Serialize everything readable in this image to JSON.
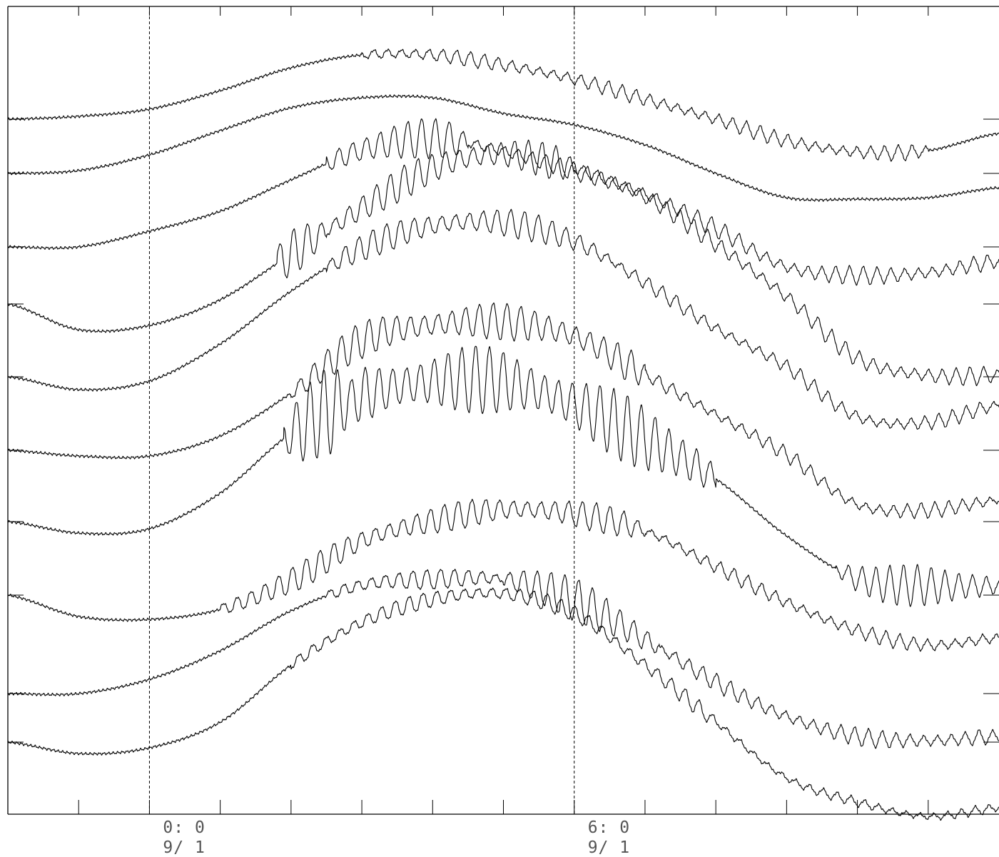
{
  "chart_data": {
    "type": "line",
    "title": "",
    "xlabel": "",
    "ylabel": "",
    "x_unit": "hours",
    "xlim": [
      -2.0,
      12.0
    ],
    "x_minor_tick_step_hours": 1,
    "grid": false,
    "x_tick_labels": [
      {
        "x": 0,
        "time": "0: 0",
        "date": "9/ 1"
      },
      {
        "x": 6,
        "time": "6: 0",
        "date": "9/ 1"
      }
    ],
    "reference_lines_x": [
      0,
      6
    ],
    "legend": "none",
    "colors": {
      "trace": "#000000",
      "axes": "#000000",
      "label": "#555555"
    },
    "series_note_values": "traces are offset and normalised; y units are not printed",
    "series": [
      {
        "values": [
          {
            "x": -2.0,
            "y": 0.0
          },
          {
            "x": -1.0,
            "y": 0.02
          },
          {
            "x": 0.0,
            "y": 0.07
          },
          {
            "x": 1.0,
            "y": 0.2
          },
          {
            "x": 2.0,
            "y": 0.36
          },
          {
            "x": 3.0,
            "y": 0.45
          },
          {
            "x": 4.0,
            "y": 0.45
          },
          {
            "x": 5.0,
            "y": 0.38
          },
          {
            "x": 6.0,
            "y": 0.28
          },
          {
            "x": 7.0,
            "y": 0.14
          },
          {
            "x": 8.0,
            "y": 0.0
          },
          {
            "x": 9.0,
            "y": -0.15
          },
          {
            "x": 10.0,
            "y": -0.23
          },
          {
            "x": 11.0,
            "y": -0.22
          },
          {
            "x": 12.0,
            "y": -0.1
          }
        ],
        "ripple": [
          {
            "x0": 3.0,
            "x1": 11.0,
            "amp": 0.05
          }
        ]
      },
      {
        "values": [
          {
            "x": -2.0,
            "y": 0.0
          },
          {
            "x": -1.0,
            "y": 0.02
          },
          {
            "x": 0.0,
            "y": 0.13
          },
          {
            "x": 1.0,
            "y": 0.3
          },
          {
            "x": 2.0,
            "y": 0.46
          },
          {
            "x": 3.0,
            "y": 0.53
          },
          {
            "x": 4.0,
            "y": 0.53
          },
          {
            "x": 5.0,
            "y": 0.42
          },
          {
            "x": 6.0,
            "y": 0.34
          },
          {
            "x": 7.0,
            "y": 0.2
          },
          {
            "x": 8.0,
            "y": 0.0
          },
          {
            "x": 9.0,
            "y": -0.17
          },
          {
            "x": 10.0,
            "y": -0.18
          },
          {
            "x": 11.0,
            "y": -0.17
          },
          {
            "x": 12.0,
            "y": -0.1
          }
        ],
        "ripple": []
      },
      {
        "values": [
          {
            "x": -2.0,
            "y": 0.0
          },
          {
            "x": -1.0,
            "y": 0.0
          },
          {
            "x": 0.0,
            "y": 0.11
          },
          {
            "x": 1.0,
            "y": 0.25
          },
          {
            "x": 2.0,
            "y": 0.47
          },
          {
            "x": 3.0,
            "y": 0.68
          },
          {
            "x": 4.0,
            "y": 0.76
          },
          {
            "x": 5.0,
            "y": 0.67
          },
          {
            "x": 6.0,
            "y": 0.53
          },
          {
            "x": 7.0,
            "y": 0.37
          },
          {
            "x": 8.0,
            "y": 0.13
          },
          {
            "x": 9.0,
            "y": -0.14
          },
          {
            "x": 10.0,
            "y": -0.2
          },
          {
            "x": 11.0,
            "y": -0.18
          },
          {
            "x": 12.0,
            "y": -0.1
          }
        ],
        "ripple": [
          {
            "x0": 2.5,
            "x1": 4.5,
            "amp": 0.14
          },
          {
            "x0": 4.5,
            "x1": 12.0,
            "amp": 0.06
          }
        ]
      },
      {
        "values": [
          {
            "x": -2.0,
            "y": 0.0
          },
          {
            "x": -1.0,
            "y": -0.18
          },
          {
            "x": 0.0,
            "y": -0.15
          },
          {
            "x": 1.0,
            "y": 0.03
          },
          {
            "x": 2.0,
            "y": 0.35
          },
          {
            "x": 3.0,
            "y": 0.67
          },
          {
            "x": 4.0,
            "y": 0.95
          },
          {
            "x": 5.0,
            "y": 1.05
          },
          {
            "x": 6.0,
            "y": 0.95
          },
          {
            "x": 7.0,
            "y": 0.75
          },
          {
            "x": 8.0,
            "y": 0.42
          },
          {
            "x": 9.0,
            "y": 0.05
          },
          {
            "x": 10.0,
            "y": -0.38
          },
          {
            "x": 11.0,
            "y": -0.5
          },
          {
            "x": 12.0,
            "y": -0.5
          }
        ],
        "ripple": [
          {
            "x0": 1.8,
            "x1": 2.5,
            "amp": 0.22
          },
          {
            "x0": 2.5,
            "x1": 6.0,
            "amp": 0.12
          },
          {
            "x0": 6.0,
            "x1": 12.0,
            "amp": 0.06
          }
        ]
      },
      {
        "values": [
          {
            "x": -2.0,
            "y": 0.0
          },
          {
            "x": -1.0,
            "y": -0.09
          },
          {
            "x": 0.0,
            "y": -0.03
          },
          {
            "x": 1.0,
            "y": 0.23
          },
          {
            "x": 2.0,
            "y": 0.6
          },
          {
            "x": 3.0,
            "y": 0.9
          },
          {
            "x": 4.0,
            "y": 1.06
          },
          {
            "x": 5.0,
            "y": 1.08
          },
          {
            "x": 6.0,
            "y": 0.95
          },
          {
            "x": 7.0,
            "y": 0.66
          },
          {
            "x": 8.0,
            "y": 0.34
          },
          {
            "x": 9.0,
            "y": 0.07
          },
          {
            "x": 10.0,
            "y": -0.28
          },
          {
            "x": 11.0,
            "y": -0.32
          },
          {
            "x": 12.0,
            "y": -0.2
          }
        ],
        "ripple": [
          {
            "x0": 2.5,
            "x1": 6.5,
            "amp": 0.1
          },
          {
            "x0": 6.5,
            "x1": 12.0,
            "amp": 0.05
          }
        ]
      },
      {
        "values": [
          {
            "x": -2.0,
            "y": 0.0
          },
          {
            "x": -1.0,
            "y": -0.04
          },
          {
            "x": 0.0,
            "y": -0.04
          },
          {
            "x": 1.0,
            "y": 0.1
          },
          {
            "x": 2.0,
            "y": 0.4
          },
          {
            "x": 3.0,
            "y": 0.77
          },
          {
            "x": 4.0,
            "y": 0.88
          },
          {
            "x": 5.0,
            "y": 0.9
          },
          {
            "x": 6.0,
            "y": 0.8
          },
          {
            "x": 7.0,
            "y": 0.53
          },
          {
            "x": 8.0,
            "y": 0.25
          },
          {
            "x": 9.0,
            "y": -0.03
          },
          {
            "x": 10.0,
            "y": -0.38
          },
          {
            "x": 11.0,
            "y": -0.42
          },
          {
            "x": 12.0,
            "y": -0.35
          }
        ],
        "ripple": [
          {
            "x0": 2.0,
            "x1": 7.0,
            "amp": 0.13
          },
          {
            "x0": 7.0,
            "x1": 12.0,
            "amp": 0.05
          }
        ]
      },
      {
        "values": [
          {
            "x": -2.0,
            "y": 0.0
          },
          {
            "x": -1.0,
            "y": -0.08
          },
          {
            "x": 0.0,
            "y": -0.05
          },
          {
            "x": 1.0,
            "y": 0.2
          },
          {
            "x": 2.0,
            "y": 0.62
          },
          {
            "x": 3.0,
            "y": 0.88
          },
          {
            "x": 4.0,
            "y": 0.98
          },
          {
            "x": 5.0,
            "y": 0.98
          },
          {
            "x": 6.0,
            "y": 0.82
          },
          {
            "x": 7.0,
            "y": 0.58
          },
          {
            "x": 8.0,
            "y": 0.3
          },
          {
            "x": 9.0,
            "y": -0.1
          },
          {
            "x": 10.0,
            "y": -0.4
          },
          {
            "x": 11.0,
            "y": -0.45
          },
          {
            "x": 12.0,
            "y": -0.45
          }
        ],
        "ripple": [
          {
            "x0": 1.9,
            "x1": 2.8,
            "amp": 0.32
          },
          {
            "x0": 2.8,
            "x1": 8.0,
            "amp": 0.24
          },
          {
            "x0": 9.7,
            "x1": 12.0,
            "amp": 0.14
          }
        ]
      },
      {
        "values": [
          {
            "x": -2.0,
            "y": 0.0
          },
          {
            "x": -1.0,
            "y": -0.15
          },
          {
            "x": 0.0,
            "y": -0.17
          },
          {
            "x": 1.0,
            "y": -0.1
          },
          {
            "x": 2.0,
            "y": 0.1
          },
          {
            "x": 3.0,
            "y": 0.38
          },
          {
            "x": 4.0,
            "y": 0.52
          },
          {
            "x": 5.0,
            "y": 0.6
          },
          {
            "x": 6.0,
            "y": 0.57
          },
          {
            "x": 7.0,
            "y": 0.45
          },
          {
            "x": 8.0,
            "y": 0.2
          },
          {
            "x": 9.0,
            "y": -0.05
          },
          {
            "x": 10.0,
            "y": -0.25
          },
          {
            "x": 11.0,
            "y": -0.35
          },
          {
            "x": 12.0,
            "y": -0.3
          }
        ],
        "ripple": [
          {
            "x0": 1.0,
            "x1": 7.0,
            "amp": 0.1
          },
          {
            "x0": 7.0,
            "x1": 12.0,
            "amp": 0.05
          }
        ]
      },
      {
        "values": [
          {
            "x": -2.0,
            "y": 0.0
          },
          {
            "x": -1.0,
            "y": 0.0
          },
          {
            "x": 0.0,
            "y": 0.1
          },
          {
            "x": 1.0,
            "y": 0.3
          },
          {
            "x": 2.0,
            "y": 0.58
          },
          {
            "x": 3.0,
            "y": 0.76
          },
          {
            "x": 4.0,
            "y": 0.8
          },
          {
            "x": 5.0,
            "y": 0.8
          },
          {
            "x": 6.0,
            "y": 0.66
          },
          {
            "x": 7.0,
            "y": 0.38
          },
          {
            "x": 8.0,
            "y": 0.08
          },
          {
            "x": 9.0,
            "y": -0.16
          },
          {
            "x": 10.0,
            "y": -0.3
          },
          {
            "x": 11.0,
            "y": -0.33
          },
          {
            "x": 12.0,
            "y": -0.3
          }
        ],
        "ripple": [
          {
            "x0": 2.5,
            "x1": 5.0,
            "amp": 0.07
          },
          {
            "x0": 5.0,
            "x1": 7.2,
            "amp": 0.15
          },
          {
            "x0": 7.2,
            "x1": 12.0,
            "amp": 0.06
          }
        ]
      },
      {
        "values": [
          {
            "x": -2.0,
            "y": 0.0
          },
          {
            "x": -1.0,
            "y": -0.08
          },
          {
            "x": 0.0,
            "y": -0.04
          },
          {
            "x": 1.0,
            "y": 0.14
          },
          {
            "x": 2.0,
            "y": 0.54
          },
          {
            "x": 3.0,
            "y": 0.84
          },
          {
            "x": 4.0,
            "y": 1.0
          },
          {
            "x": 5.0,
            "y": 1.04
          },
          {
            "x": 6.0,
            "y": 0.9
          },
          {
            "x": 7.0,
            "y": 0.54
          },
          {
            "x": 8.0,
            "y": 0.14
          },
          {
            "x": 9.0,
            "y": -0.25
          },
          {
            "x": 10.0,
            "y": -0.42
          },
          {
            "x": 11.0,
            "y": -0.52
          },
          {
            "x": 12.0,
            "y": -0.46
          }
        ],
        "ripple": [
          {
            "x0": 2.0,
            "x1": 8.0,
            "amp": 0.06
          },
          {
            "x0": 8.0,
            "x1": 12.0,
            "amp": 0.03
          }
        ]
      }
    ]
  }
}
